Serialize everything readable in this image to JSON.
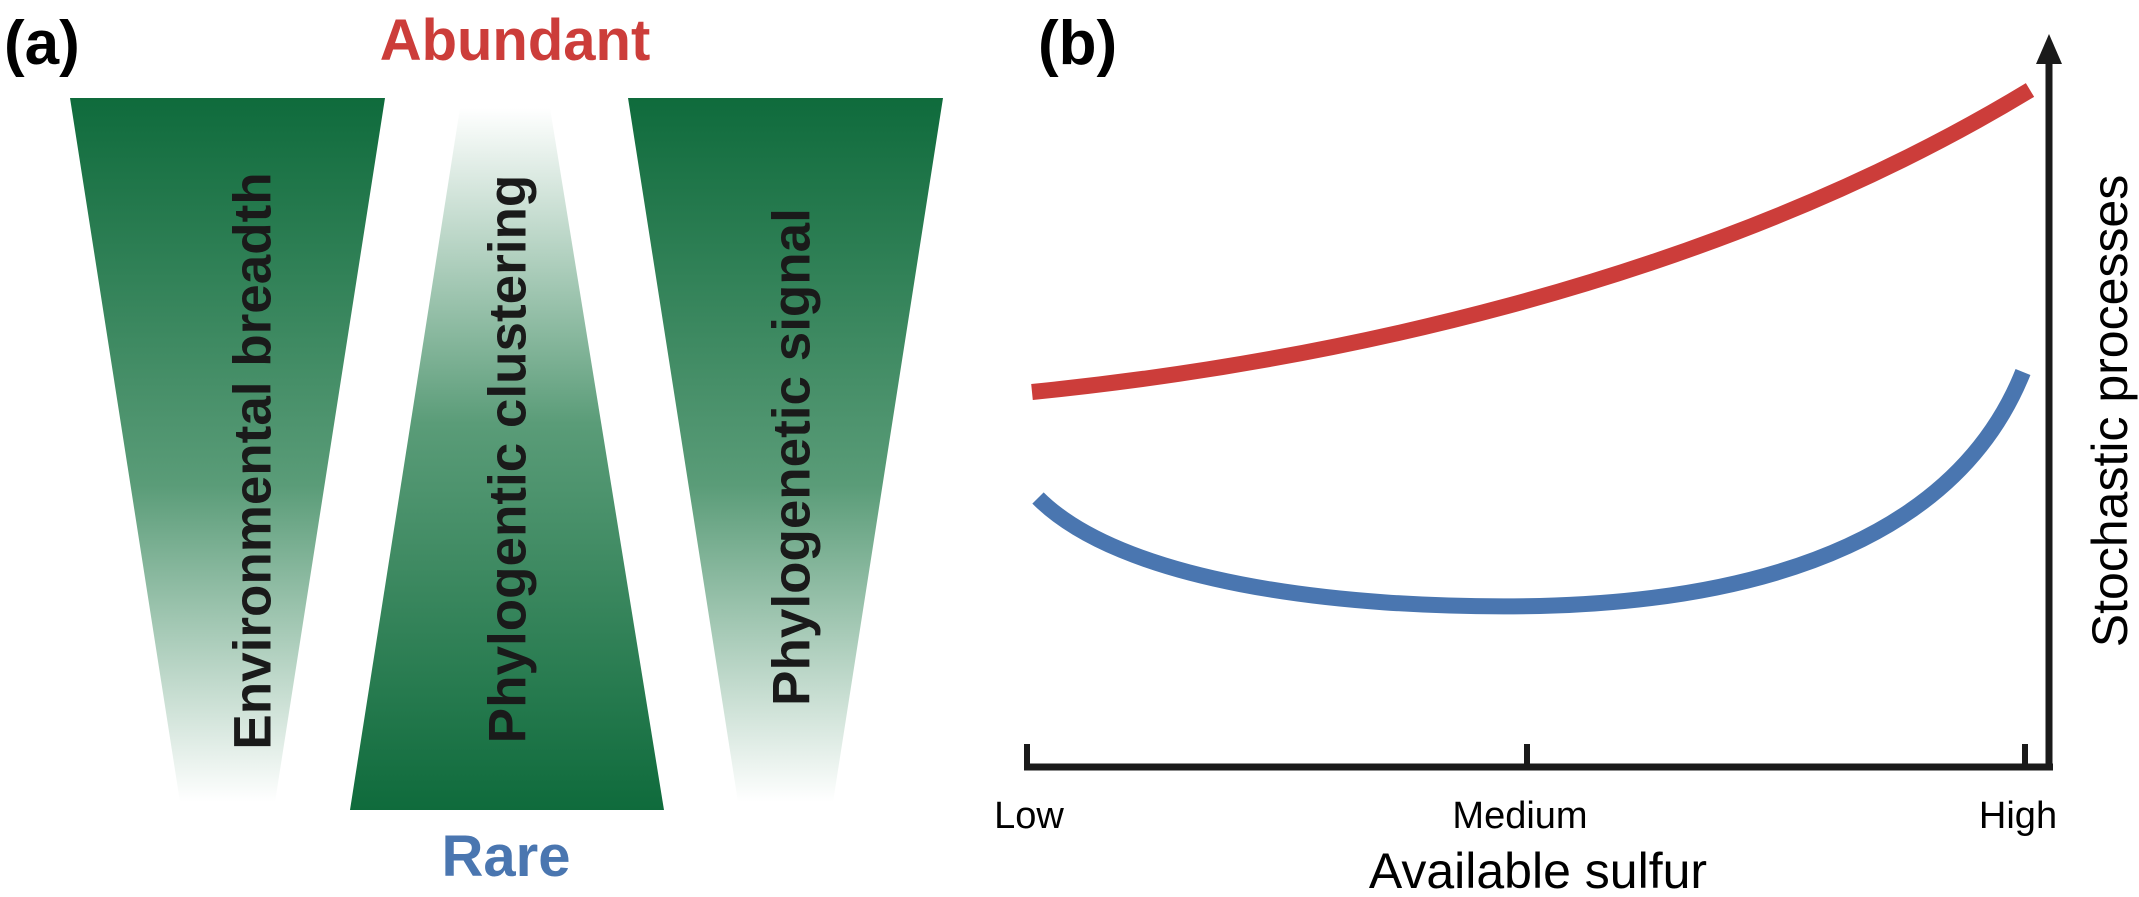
{
  "panel_a": {
    "label": "(a)",
    "top_label": "Abundant",
    "bottom_label": "Rare",
    "wedges": [
      {
        "text": "Environmental breadth",
        "wide_end": "top"
      },
      {
        "text": "Phylogentic clustering",
        "wide_end": "bottom"
      },
      {
        "text": "Phylogenetic signal",
        "wide_end": "top"
      }
    ]
  },
  "panel_b": {
    "label": "(b)",
    "x_axis_title": "Available sulfur",
    "y_axis_title": "Stochastic processes",
    "x_ticks": [
      "Low",
      "Medium",
      "High"
    ]
  },
  "colors": {
    "abundant": "#cc3d3a",
    "rare": "#4a76b0",
    "wedge_green": "#0f6b3c",
    "axis": "#1a1a1a"
  }
}
